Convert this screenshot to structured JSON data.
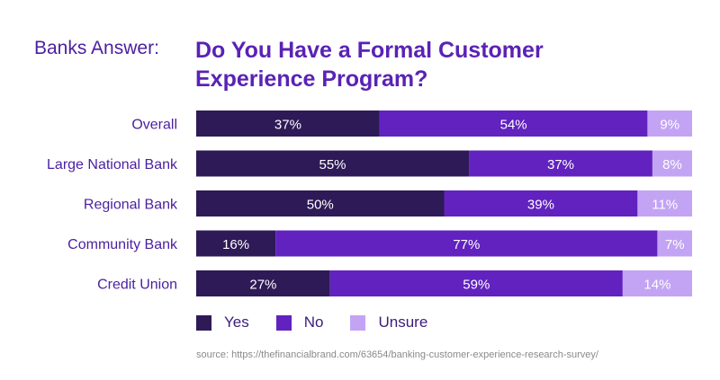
{
  "header": {
    "pre_title": "Banks Answer:",
    "title_line1": "Do You Have a Formal Customer",
    "title_line2": "Experience Program?"
  },
  "colors": {
    "yes": "#2e1a57",
    "no": "#6122bf",
    "unsure": "#c3a4f4",
    "label": "#4b1fa0"
  },
  "chart_data": {
    "type": "bar",
    "stacked": true,
    "orientation": "horizontal",
    "categories": [
      "Overall",
      "Large National Bank",
      "Regional Bank",
      "Community Bank",
      "Credit Union"
    ],
    "series": [
      {
        "name": "Yes",
        "values": [
          37,
          55,
          50,
          16,
          27
        ]
      },
      {
        "name": "No",
        "values": [
          54,
          37,
          39,
          77,
          59
        ]
      },
      {
        "name": "Unsure",
        "values": [
          9,
          8,
          11,
          7,
          14
        ]
      }
    ],
    "value_suffix": "%",
    "legend_position": "bottom",
    "grid": false
  },
  "legend": {
    "yes": "Yes",
    "no": "No",
    "unsure": "Unsure"
  },
  "source": "source: https://thefinancialbrand.com/63654/banking-customer-experience-research-survey/"
}
